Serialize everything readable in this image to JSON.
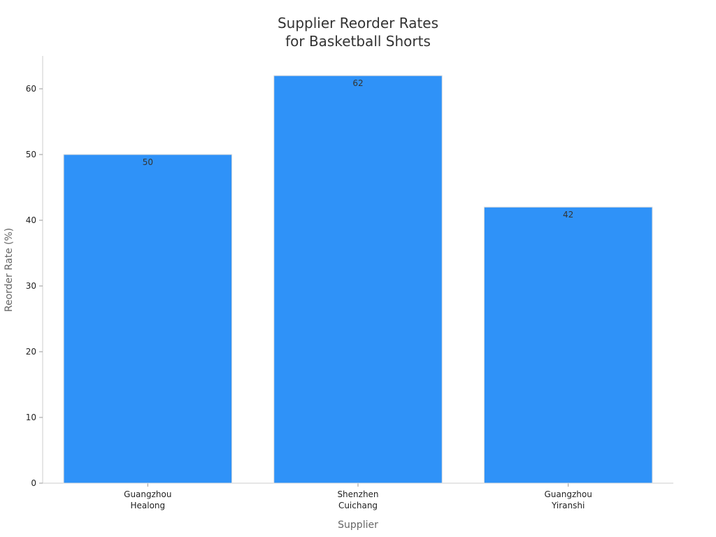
{
  "chart_data": {
    "type": "bar",
    "title": [
      "Supplier Reorder Rates",
      "for Basketball Shorts"
    ],
    "xlabel": "Supplier",
    "ylabel": "Reorder Rate (%)",
    "categories": [
      [
        "Guangzhou",
        "Healong"
      ],
      [
        "Shenzhen",
        "Cuichang"
      ],
      [
        "Guangzhou",
        "Yiranshi"
      ]
    ],
    "values": [
      50,
      62,
      42
    ],
    "ylim": [
      0,
      65
    ],
    "yticks": [
      0,
      10,
      20,
      30,
      40,
      50,
      60
    ],
    "grid": false,
    "legend": "none",
    "colors": {
      "bar": "#2f92f8"
    }
  }
}
